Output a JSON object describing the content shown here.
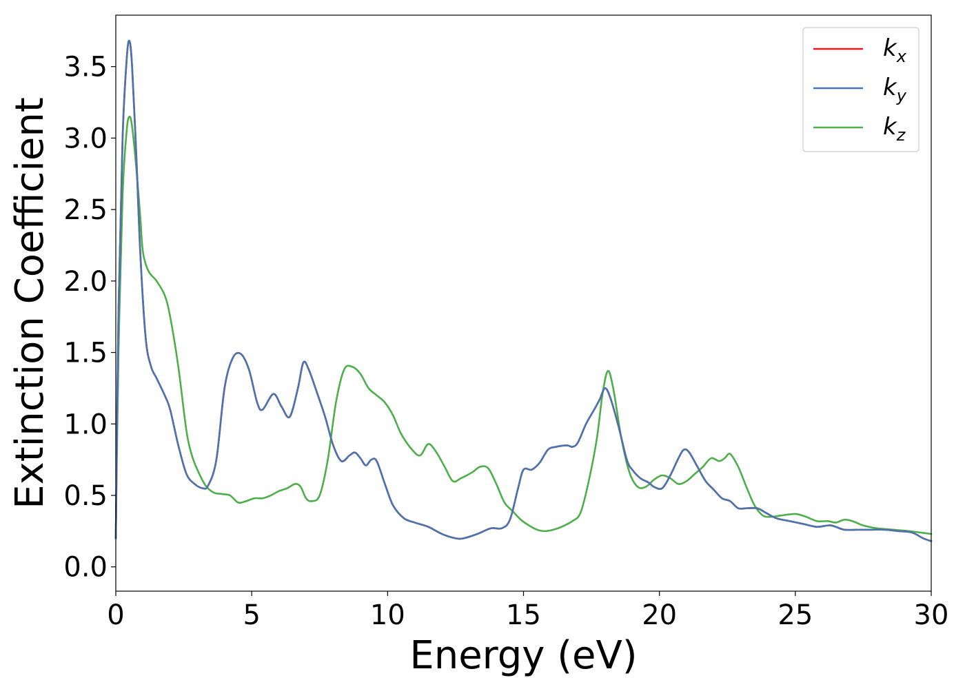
{
  "chart_data": {
    "type": "line",
    "xlabel": "Energy (eV)",
    "ylabel": "Extinction Coefficient",
    "xlim": [
      0,
      30
    ],
    "ylim": [
      -0.17,
      3.86
    ],
    "xticks": [
      0,
      5,
      10,
      15,
      20,
      25,
      30
    ],
    "xtick_labels": [
      "0",
      "5",
      "10",
      "15",
      "20",
      "25",
      "30"
    ],
    "yticks": [
      0.0,
      0.5,
      1.0,
      1.5,
      2.0,
      2.5,
      3.0,
      3.5
    ],
    "ytick_labels": [
      "0.0",
      "0.5",
      "1.0",
      "1.5",
      "2.0",
      "2.5",
      "3.0",
      "3.5"
    ],
    "grid": false,
    "legend_position": "top-right",
    "series": [
      {
        "name": "k_x",
        "legend_base": "k",
        "legend_sub": "x",
        "color": "#e41a1c",
        "x": [
          0,
          0.1,
          0.25,
          0.4,
          0.5,
          0.6,
          0.75,
          0.9,
          1.1,
          1.3,
          1.5,
          1.8,
          2.0,
          2.3,
          2.6,
          2.9,
          3.2,
          3.4,
          3.7,
          4.0,
          4.3,
          4.6,
          4.9,
          5.2,
          5.4,
          5.8,
          6.1,
          6.4,
          6.7,
          6.9,
          7.1,
          7.4,
          7.7,
          8.0,
          8.3,
          8.6,
          8.8,
          9.0,
          9.2,
          9.4,
          9.6,
          9.9,
          10.2,
          10.6,
          11.0,
          11.5,
          12.0,
          12.5,
          12.8,
          13.3,
          13.8,
          14.2,
          14.5,
          14.8,
          15.0,
          15.3,
          15.6,
          15.9,
          16.2,
          16.6,
          16.8,
          17.0,
          17.3,
          17.6,
          17.8,
          18.0,
          18.2,
          18.5,
          18.8,
          19.0,
          19.3,
          19.6,
          19.8,
          20.1,
          20.4,
          20.7,
          20.9,
          21.1,
          21.4,
          21.7,
          22.0,
          22.3,
          22.6,
          22.9,
          23.2,
          23.6,
          23.9,
          24.3,
          24.8,
          25.3,
          25.8,
          26.3,
          26.8,
          27.3,
          27.8,
          28.3,
          28.8,
          29.3,
          29.7,
          30.0
        ],
        "y": [
          0.2,
          1.8,
          3.0,
          3.55,
          3.68,
          3.5,
          2.9,
          2.2,
          1.6,
          1.4,
          1.32,
          1.2,
          1.1,
          0.85,
          0.65,
          0.58,
          0.55,
          0.57,
          0.75,
          1.25,
          1.46,
          1.49,
          1.38,
          1.15,
          1.1,
          1.21,
          1.12,
          1.05,
          1.25,
          1.43,
          1.38,
          1.22,
          1.05,
          0.85,
          0.74,
          0.78,
          0.8,
          0.76,
          0.71,
          0.75,
          0.74,
          0.58,
          0.43,
          0.34,
          0.31,
          0.28,
          0.23,
          0.2,
          0.2,
          0.23,
          0.27,
          0.27,
          0.33,
          0.55,
          0.68,
          0.68,
          0.73,
          0.82,
          0.84,
          0.85,
          0.84,
          0.87,
          1.0,
          1.1,
          1.17,
          1.25,
          1.18,
          0.98,
          0.75,
          0.68,
          0.62,
          0.59,
          0.56,
          0.55,
          0.64,
          0.76,
          0.82,
          0.8,
          0.7,
          0.6,
          0.54,
          0.48,
          0.46,
          0.41,
          0.41,
          0.41,
          0.38,
          0.34,
          0.32,
          0.3,
          0.28,
          0.29,
          0.26,
          0.26,
          0.26,
          0.26,
          0.25,
          0.24,
          0.2,
          0.18
        ]
      },
      {
        "name": "k_y",
        "legend_base": "k",
        "legend_sub": "y",
        "color": "#4a74b0",
        "x": [
          0,
          0.1,
          0.25,
          0.4,
          0.5,
          0.6,
          0.75,
          0.9,
          1.1,
          1.3,
          1.5,
          1.8,
          2.0,
          2.3,
          2.6,
          2.9,
          3.2,
          3.4,
          3.7,
          4.0,
          4.3,
          4.6,
          4.9,
          5.2,
          5.4,
          5.8,
          6.1,
          6.4,
          6.7,
          6.9,
          7.1,
          7.4,
          7.7,
          8.0,
          8.3,
          8.6,
          8.8,
          9.0,
          9.2,
          9.4,
          9.6,
          9.9,
          10.2,
          10.6,
          11.0,
          11.5,
          12.0,
          12.5,
          12.8,
          13.3,
          13.8,
          14.2,
          14.5,
          14.8,
          15.0,
          15.3,
          15.6,
          15.9,
          16.2,
          16.6,
          16.8,
          17.0,
          17.3,
          17.6,
          17.8,
          18.0,
          18.2,
          18.5,
          18.8,
          19.0,
          19.3,
          19.6,
          19.8,
          20.1,
          20.4,
          20.7,
          20.9,
          21.1,
          21.4,
          21.7,
          22.0,
          22.3,
          22.6,
          22.9,
          23.2,
          23.6,
          23.9,
          24.3,
          24.8,
          25.3,
          25.8,
          26.3,
          26.8,
          27.3,
          27.8,
          28.3,
          28.8,
          29.3,
          29.7,
          30.0
        ],
        "y": [
          0.2,
          1.8,
          3.0,
          3.55,
          3.68,
          3.5,
          2.9,
          2.2,
          1.6,
          1.4,
          1.32,
          1.2,
          1.1,
          0.85,
          0.65,
          0.58,
          0.55,
          0.57,
          0.75,
          1.25,
          1.46,
          1.49,
          1.38,
          1.15,
          1.1,
          1.21,
          1.12,
          1.05,
          1.25,
          1.43,
          1.38,
          1.22,
          1.05,
          0.85,
          0.74,
          0.78,
          0.8,
          0.76,
          0.71,
          0.75,
          0.74,
          0.58,
          0.43,
          0.34,
          0.31,
          0.28,
          0.23,
          0.2,
          0.2,
          0.23,
          0.27,
          0.27,
          0.33,
          0.55,
          0.68,
          0.68,
          0.73,
          0.82,
          0.84,
          0.85,
          0.84,
          0.87,
          1.0,
          1.1,
          1.17,
          1.25,
          1.18,
          0.98,
          0.75,
          0.68,
          0.62,
          0.59,
          0.56,
          0.55,
          0.64,
          0.76,
          0.82,
          0.8,
          0.7,
          0.6,
          0.54,
          0.48,
          0.46,
          0.41,
          0.41,
          0.41,
          0.38,
          0.34,
          0.32,
          0.3,
          0.28,
          0.29,
          0.26,
          0.26,
          0.26,
          0.26,
          0.25,
          0.24,
          0.2,
          0.18
        ]
      },
      {
        "name": "k_z",
        "legend_base": "k",
        "legend_sub": "z",
        "color": "#4daf4a",
        "x": [
          0,
          0.1,
          0.25,
          0.4,
          0.5,
          0.6,
          0.75,
          0.9,
          1.0,
          1.2,
          1.5,
          1.8,
          2.0,
          2.3,
          2.6,
          2.8,
          3.0,
          3.3,
          3.6,
          3.9,
          4.2,
          4.5,
          4.8,
          5.1,
          5.4,
          5.7,
          6.0,
          6.3,
          6.6,
          6.8,
          7.0,
          7.2,
          7.5,
          7.8,
          8.1,
          8.4,
          8.7,
          9.0,
          9.3,
          9.6,
          9.9,
          10.2,
          10.5,
          10.9,
          11.2,
          11.5,
          11.8,
          12.1,
          12.4,
          12.7,
          13.1,
          13.4,
          13.7,
          14.0,
          14.3,
          14.6,
          14.9,
          15.2,
          15.5,
          15.8,
          16.1,
          16.4,
          16.8,
          17.1,
          17.4,
          17.7,
          17.9,
          18.1,
          18.3,
          18.6,
          18.9,
          19.2,
          19.5,
          19.8,
          20.1,
          20.4,
          20.7,
          21.0,
          21.3,
          21.6,
          21.9,
          22.2,
          22.4,
          22.6,
          22.9,
          23.2,
          23.5,
          23.8,
          24.1,
          24.5,
          25.0,
          25.4,
          25.8,
          26.2,
          26.5,
          26.8,
          27.1,
          27.5,
          28.0,
          28.6,
          29.2,
          29.6,
          30.0
        ],
        "y": [
          0.2,
          1.5,
          2.6,
          3.05,
          3.15,
          3.08,
          2.8,
          2.45,
          2.2,
          2.07,
          2.0,
          1.9,
          1.75,
          1.4,
          0.95,
          0.78,
          0.68,
          0.57,
          0.52,
          0.51,
          0.5,
          0.45,
          0.46,
          0.48,
          0.48,
          0.5,
          0.53,
          0.55,
          0.58,
          0.56,
          0.48,
          0.46,
          0.5,
          0.75,
          1.15,
          1.38,
          1.4,
          1.35,
          1.25,
          1.2,
          1.15,
          1.06,
          0.93,
          0.82,
          0.78,
          0.86,
          0.8,
          0.7,
          0.6,
          0.62,
          0.66,
          0.7,
          0.69,
          0.58,
          0.45,
          0.39,
          0.33,
          0.29,
          0.26,
          0.25,
          0.26,
          0.28,
          0.32,
          0.38,
          0.6,
          0.9,
          1.2,
          1.37,
          1.25,
          0.9,
          0.66,
          0.56,
          0.56,
          0.61,
          0.64,
          0.62,
          0.58,
          0.6,
          0.65,
          0.7,
          0.76,
          0.74,
          0.76,
          0.79,
          0.7,
          0.56,
          0.43,
          0.36,
          0.35,
          0.36,
          0.37,
          0.35,
          0.32,
          0.32,
          0.31,
          0.33,
          0.32,
          0.29,
          0.27,
          0.26,
          0.25,
          0.24,
          0.23
        ]
      }
    ]
  }
}
